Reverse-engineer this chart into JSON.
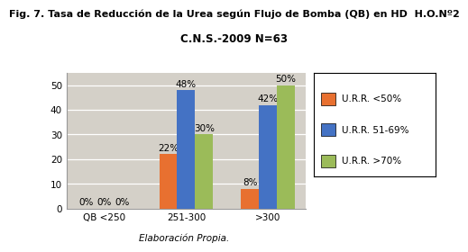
{
  "title1": "Fig. 7. Tasa de Reducción de la Urea según Flujo de Bomba (QB) en HD  H.O.Nº2",
  "title2": "C.N.S.-2009 N=63",
  "footer": "Elaboración Propia.",
  "categories": [
    "QB <250",
    "251-300",
    ">300"
  ],
  "series": [
    {
      "label": "U.R.R. <50%",
      "color": "#E87030",
      "values": [
        0,
        22,
        8
      ]
    },
    {
      "label": "U.R.R. 51-69%",
      "color": "#4472C4",
      "values": [
        0,
        48,
        42
      ]
    },
    {
      "label": "U.R.R. >70%",
      "color": "#9BBB59",
      "values": [
        0,
        30,
        50
      ]
    }
  ],
  "ylim": [
    0,
    55
  ],
  "yticks": [
    0,
    10,
    20,
    30,
    40,
    50
  ],
  "bar_width": 0.22,
  "plot_bg_color": "#D4D0C8",
  "figure_bg": "#FFFFFF",
  "label_fontsize": 7.5,
  "title1_fontsize": 8.0,
  "title2_fontsize": 8.5,
  "legend_fontsize": 7.5,
  "tick_fontsize": 7.5,
  "footer_fontsize": 7.5
}
